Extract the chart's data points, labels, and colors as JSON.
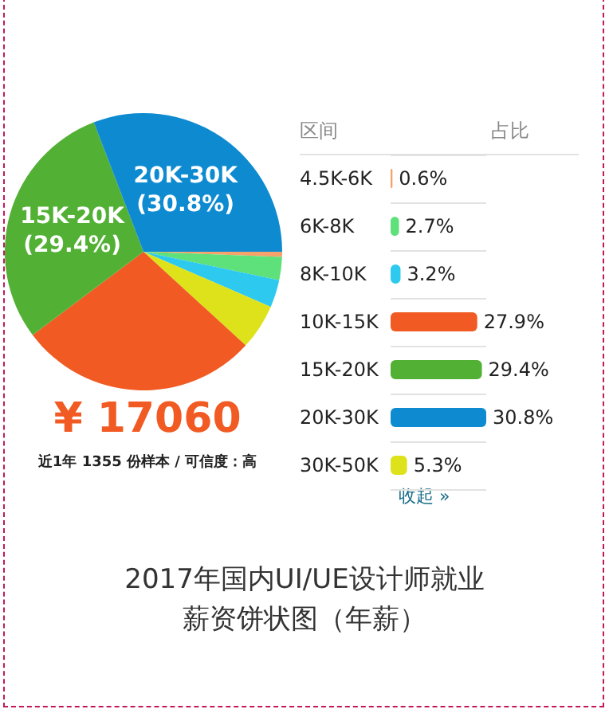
{
  "chart_data": [
    {
      "type": "pie",
      "title": "2017年国内UI/UE设计师就业薪资饼状图（年薪）",
      "categories": [
        null,
        null,
        null,
        null,
        null,
        null,
        null
      ],
      "values": [
        0.6,
        2.7,
        3.2,
        5.3,
        27.9,
        29.4,
        30.8
      ],
      "colors": [
        "#f5a36a",
        "#5ee07a",
        "#2ec9ee",
        "#dde21a",
        "#f15a22",
        "#52b135",
        "#0e8bd0"
      ],
      "value_labels": [
        null,
        null,
        null,
        null,
        null,
        "15K-20K\n(29.4%)",
        "20K-30K\n(30.8%)"
      ],
      "annotations": [
        "¥ 17060",
        "近1年 1355 份样本 / 可信度：高"
      ]
    },
    {
      "type": "bar",
      "orientation": "horizontal",
      "ylabel": "区间",
      "xlabel": "占比",
      "categories": [
        "4.5K-6K",
        "6K-8K",
        "8K-10K",
        "10K-15K",
        "15K-20K",
        "20K-30K",
        "30K-50K"
      ],
      "values": [
        0.6,
        2.7,
        3.2,
        27.9,
        29.4,
        30.8,
        5.3
      ],
      "colors": [
        "#f5a36a",
        "#5ee07a",
        "#2ec9ee",
        "#f15a22",
        "#52b135",
        "#0e8bd0",
        "#dde21a"
      ],
      "value_labels": [
        "0.6%",
        "2.7%",
        "3.2%",
        "27.9%",
        "29.4%",
        "30.8%",
        "5.3%"
      ],
      "grid": true,
      "annotations": [
        "收起 »"
      ]
    }
  ]
}
